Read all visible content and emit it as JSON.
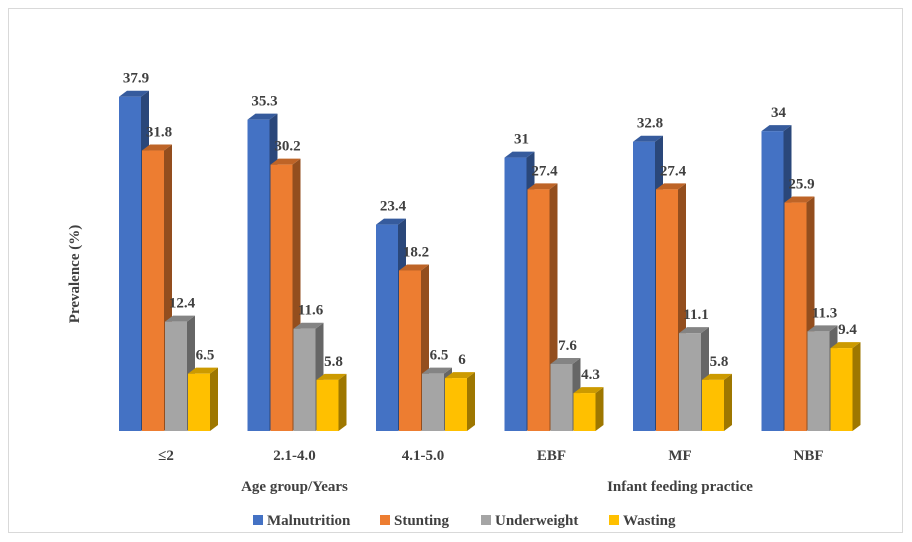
{
  "chart_data": {
    "type": "bar",
    "ylabel": "Prevalence (%)",
    "categories": [
      "≤2",
      "2.1-4.0",
      "4.1-5.0",
      "EBF",
      "MF",
      "NBF"
    ],
    "group_labels": [
      {
        "label": "Age group/Years",
        "categories": [
          "≤2",
          "2.1-4.0",
          "4.1-5.0"
        ]
      },
      {
        "label": "Infant feeding practice",
        "categories": [
          "EBF",
          "MF",
          "NBF"
        ]
      }
    ],
    "series": [
      {
        "name": "Malnutrition",
        "values": [
          37.9,
          35.3,
          23.4,
          31,
          32.8,
          34
        ],
        "labels": [
          "37.9",
          "35.3",
          "23.4",
          "31",
          "32.8",
          "34"
        ]
      },
      {
        "name": "Stunting",
        "values": [
          31.8,
          30.2,
          18.2,
          27.4,
          27.4,
          25.9
        ],
        "labels": [
          "31.8",
          "30.2",
          "18.2",
          "27.4",
          "27.4",
          "25.9"
        ]
      },
      {
        "name": "Underweight",
        "values": [
          12.4,
          11.6,
          6.5,
          7.6,
          11.1,
          11.3
        ],
        "labels": [
          "12.4",
          "11.6",
          "6.5",
          "7.6",
          "11.1",
          "11.3"
        ]
      },
      {
        "name": "Wasting",
        "values": [
          6.5,
          5.8,
          6,
          4.3,
          5.8,
          9.4
        ],
        "labels": [
          "6.5",
          "5.8",
          "6",
          "4.3",
          "5.8",
          "9.4"
        ]
      }
    ],
    "colors": {
      "Malnutrition": "#4472c4",
      "Stunting": "#ed7d31",
      "Underweight": "#a5a5a5",
      "Wasting": "#ffc000"
    },
    "ylim": [
      0,
      40
    ],
    "grid": false,
    "style": "3d-column",
    "legend_position": "bottom"
  }
}
